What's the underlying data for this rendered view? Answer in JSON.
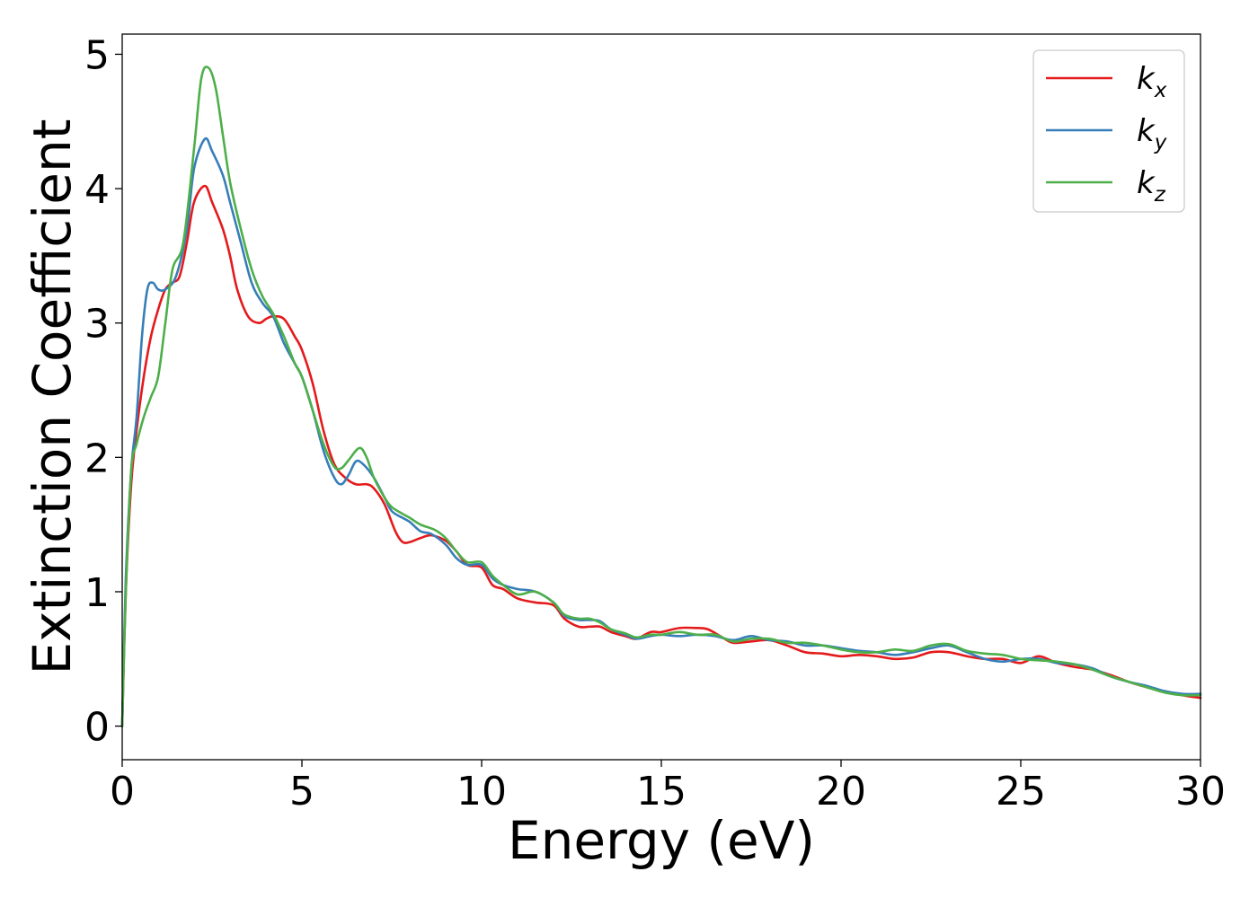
{
  "chart_data": {
    "type": "line",
    "xlabel": "Energy (eV)",
    "ylabel": "Extinction Coefficient",
    "xlim": [
      0,
      30
    ],
    "ylim": [
      -0.25,
      5.15
    ],
    "xticks": [
      0,
      5,
      10,
      15,
      20,
      25,
      30
    ],
    "xtick_labels": [
      "0",
      "5",
      "10",
      "15",
      "20",
      "25",
      "30"
    ],
    "yticks": [
      0,
      1,
      2,
      3,
      4,
      5
    ],
    "ytick_labels": [
      "0",
      "1",
      "2",
      "3",
      "4",
      "5"
    ],
    "grid": false,
    "legend_position": "top-right",
    "series": [
      {
        "name": "k",
        "subscript": "x",
        "color": "#e41a1c",
        "points": [
          [
            0,
            0
          ],
          [
            0.1,
            1.0
          ],
          [
            0.25,
            1.8
          ],
          [
            0.4,
            2.2
          ],
          [
            0.6,
            2.6
          ],
          [
            0.8,
            2.9
          ],
          [
            1.0,
            3.1
          ],
          [
            1.2,
            3.25
          ],
          [
            1.4,
            3.3
          ],
          [
            1.6,
            3.35
          ],
          [
            1.8,
            3.6
          ],
          [
            2.0,
            3.9
          ],
          [
            2.3,
            4.02
          ],
          [
            2.5,
            3.9
          ],
          [
            2.8,
            3.7
          ],
          [
            3.0,
            3.5
          ],
          [
            3.2,
            3.25
          ],
          [
            3.5,
            3.05
          ],
          [
            3.8,
            3.0
          ],
          [
            4.0,
            3.03
          ],
          [
            4.2,
            3.05
          ],
          [
            4.5,
            3.03
          ],
          [
            4.8,
            2.9
          ],
          [
            5.0,
            2.8
          ],
          [
            5.3,
            2.55
          ],
          [
            5.6,
            2.2
          ],
          [
            5.9,
            1.95
          ],
          [
            6.2,
            1.85
          ],
          [
            6.5,
            1.8
          ],
          [
            6.8,
            1.8
          ],
          [
            7.0,
            1.77
          ],
          [
            7.3,
            1.65
          ],
          [
            7.6,
            1.45
          ],
          [
            7.8,
            1.37
          ],
          [
            8.0,
            1.37
          ],
          [
            8.3,
            1.4
          ],
          [
            8.6,
            1.42
          ],
          [
            9.0,
            1.38
          ],
          [
            9.3,
            1.3
          ],
          [
            9.6,
            1.2
          ],
          [
            10.0,
            1.18
          ],
          [
            10.3,
            1.05
          ],
          [
            10.6,
            1.02
          ],
          [
            11.0,
            0.95
          ],
          [
            11.5,
            0.92
          ],
          [
            12.0,
            0.9
          ],
          [
            12.3,
            0.8
          ],
          [
            12.7,
            0.74
          ],
          [
            13.0,
            0.74
          ],
          [
            13.3,
            0.74
          ],
          [
            13.6,
            0.7
          ],
          [
            14.0,
            0.67
          ],
          [
            14.3,
            0.65
          ],
          [
            14.7,
            0.7
          ],
          [
            15.0,
            0.7
          ],
          [
            15.5,
            0.73
          ],
          [
            16.0,
            0.73
          ],
          [
            16.3,
            0.72
          ],
          [
            16.7,
            0.66
          ],
          [
            17.0,
            0.62
          ],
          [
            17.5,
            0.63
          ],
          [
            18.0,
            0.64
          ],
          [
            18.5,
            0.6
          ],
          [
            19.0,
            0.55
          ],
          [
            19.5,
            0.54
          ],
          [
            20.0,
            0.52
          ],
          [
            20.5,
            0.53
          ],
          [
            21.0,
            0.52
          ],
          [
            21.5,
            0.5
          ],
          [
            22.0,
            0.51
          ],
          [
            22.5,
            0.55
          ],
          [
            23.0,
            0.55
          ],
          [
            23.5,
            0.52
          ],
          [
            24.0,
            0.5
          ],
          [
            24.5,
            0.5
          ],
          [
            25.0,
            0.47
          ],
          [
            25.5,
            0.52
          ],
          [
            26.0,
            0.47
          ],
          [
            26.5,
            0.44
          ],
          [
            27.0,
            0.42
          ],
          [
            27.5,
            0.38
          ],
          [
            28.0,
            0.33
          ],
          [
            28.5,
            0.29
          ],
          [
            29.0,
            0.26
          ],
          [
            29.5,
            0.23
          ],
          [
            30.0,
            0.21
          ]
        ]
      },
      {
        "name": "k",
        "subscript": "y",
        "color": "#377eb8",
        "points": [
          [
            0,
            0
          ],
          [
            0.1,
            1.1
          ],
          [
            0.25,
            1.9
          ],
          [
            0.4,
            2.3
          ],
          [
            0.55,
            2.9
          ],
          [
            0.7,
            3.25
          ],
          [
            0.85,
            3.3
          ],
          [
            1.0,
            3.25
          ],
          [
            1.2,
            3.25
          ],
          [
            1.5,
            3.35
          ],
          [
            1.8,
            3.7
          ],
          [
            2.0,
            4.15
          ],
          [
            2.3,
            4.37
          ],
          [
            2.5,
            4.28
          ],
          [
            2.8,
            4.1
          ],
          [
            3.0,
            3.9
          ],
          [
            3.3,
            3.6
          ],
          [
            3.6,
            3.3
          ],
          [
            3.9,
            3.15
          ],
          [
            4.2,
            3.05
          ],
          [
            4.5,
            2.85
          ],
          [
            4.8,
            2.7
          ],
          [
            5.0,
            2.6
          ],
          [
            5.3,
            2.35
          ],
          [
            5.6,
            2.05
          ],
          [
            5.9,
            1.85
          ],
          [
            6.1,
            1.8
          ],
          [
            6.3,
            1.87
          ],
          [
            6.5,
            1.97
          ],
          [
            6.7,
            1.95
          ],
          [
            7.0,
            1.85
          ],
          [
            7.3,
            1.7
          ],
          [
            7.5,
            1.6
          ],
          [
            7.8,
            1.55
          ],
          [
            8.0,
            1.52
          ],
          [
            8.3,
            1.45
          ],
          [
            8.6,
            1.43
          ],
          [
            9.0,
            1.35
          ],
          [
            9.3,
            1.25
          ],
          [
            9.6,
            1.2
          ],
          [
            10.0,
            1.2
          ],
          [
            10.3,
            1.1
          ],
          [
            10.6,
            1.05
          ],
          [
            11.0,
            1.02
          ],
          [
            11.5,
            1.0
          ],
          [
            12.0,
            0.92
          ],
          [
            12.3,
            0.82
          ],
          [
            12.7,
            0.79
          ],
          [
            13.0,
            0.79
          ],
          [
            13.3,
            0.78
          ],
          [
            13.6,
            0.72
          ],
          [
            14.0,
            0.68
          ],
          [
            14.3,
            0.65
          ],
          [
            14.7,
            0.67
          ],
          [
            15.0,
            0.68
          ],
          [
            15.5,
            0.67
          ],
          [
            16.0,
            0.68
          ],
          [
            16.5,
            0.67
          ],
          [
            17.0,
            0.64
          ],
          [
            17.5,
            0.67
          ],
          [
            18.0,
            0.64
          ],
          [
            18.5,
            0.63
          ],
          [
            19.0,
            0.6
          ],
          [
            19.5,
            0.6
          ],
          [
            20.0,
            0.58
          ],
          [
            20.5,
            0.56
          ],
          [
            21.0,
            0.55
          ],
          [
            21.5,
            0.53
          ],
          [
            22.0,
            0.55
          ],
          [
            22.5,
            0.58
          ],
          [
            23.0,
            0.6
          ],
          [
            23.5,
            0.55
          ],
          [
            24.0,
            0.5
          ],
          [
            24.5,
            0.48
          ],
          [
            25.0,
            0.5
          ],
          [
            25.5,
            0.5
          ],
          [
            26.0,
            0.47
          ],
          [
            26.5,
            0.46
          ],
          [
            27.0,
            0.43
          ],
          [
            27.5,
            0.37
          ],
          [
            28.0,
            0.33
          ],
          [
            28.5,
            0.3
          ],
          [
            29.0,
            0.26
          ],
          [
            29.5,
            0.24
          ],
          [
            30.0,
            0.24
          ]
        ]
      },
      {
        "name": "k",
        "subscript": "z",
        "color": "#4daf4a",
        "points": [
          [
            0,
            0
          ],
          [
            0.1,
            1.0
          ],
          [
            0.25,
            1.9
          ],
          [
            0.4,
            2.1
          ],
          [
            0.6,
            2.3
          ],
          [
            0.8,
            2.45
          ],
          [
            1.0,
            2.6
          ],
          [
            1.2,
            3.0
          ],
          [
            1.4,
            3.4
          ],
          [
            1.7,
            3.6
          ],
          [
            2.0,
            4.3
          ],
          [
            2.2,
            4.82
          ],
          [
            2.4,
            4.9
          ],
          [
            2.6,
            4.75
          ],
          [
            2.8,
            4.4
          ],
          [
            3.0,
            4.05
          ],
          [
            3.3,
            3.7
          ],
          [
            3.6,
            3.4
          ],
          [
            3.9,
            3.2
          ],
          [
            4.2,
            3.07
          ],
          [
            4.5,
            2.9
          ],
          [
            4.8,
            2.7
          ],
          [
            5.0,
            2.6
          ],
          [
            5.3,
            2.35
          ],
          [
            5.6,
            2.1
          ],
          [
            5.9,
            1.93
          ],
          [
            6.1,
            1.92
          ],
          [
            6.3,
            1.98
          ],
          [
            6.6,
            2.07
          ],
          [
            6.8,
            2.0
          ],
          [
            7.0,
            1.85
          ],
          [
            7.3,
            1.7
          ],
          [
            7.5,
            1.63
          ],
          [
            7.8,
            1.58
          ],
          [
            8.0,
            1.55
          ],
          [
            8.3,
            1.5
          ],
          [
            8.7,
            1.46
          ],
          [
            9.0,
            1.4
          ],
          [
            9.3,
            1.3
          ],
          [
            9.6,
            1.22
          ],
          [
            10.0,
            1.22
          ],
          [
            10.3,
            1.12
          ],
          [
            10.6,
            1.05
          ],
          [
            11.0,
            0.98
          ],
          [
            11.5,
            1.0
          ],
          [
            12.0,
            0.92
          ],
          [
            12.3,
            0.83
          ],
          [
            12.7,
            0.8
          ],
          [
            13.0,
            0.8
          ],
          [
            13.3,
            0.77
          ],
          [
            13.6,
            0.72
          ],
          [
            14.0,
            0.69
          ],
          [
            14.3,
            0.66
          ],
          [
            14.7,
            0.68
          ],
          [
            15.0,
            0.68
          ],
          [
            15.5,
            0.7
          ],
          [
            16.0,
            0.68
          ],
          [
            16.5,
            0.68
          ],
          [
            17.0,
            0.63
          ],
          [
            17.5,
            0.65
          ],
          [
            18.0,
            0.65
          ],
          [
            18.5,
            0.62
          ],
          [
            19.0,
            0.62
          ],
          [
            19.5,
            0.6
          ],
          [
            20.0,
            0.57
          ],
          [
            20.5,
            0.55
          ],
          [
            21.0,
            0.55
          ],
          [
            21.5,
            0.57
          ],
          [
            22.0,
            0.56
          ],
          [
            22.5,
            0.6
          ],
          [
            23.0,
            0.61
          ],
          [
            23.5,
            0.56
          ],
          [
            24.0,
            0.54
          ],
          [
            24.5,
            0.53
          ],
          [
            25.0,
            0.5
          ],
          [
            25.5,
            0.49
          ],
          [
            26.0,
            0.48
          ],
          [
            26.5,
            0.46
          ],
          [
            27.0,
            0.42
          ],
          [
            27.5,
            0.37
          ],
          [
            28.0,
            0.33
          ],
          [
            28.5,
            0.29
          ],
          [
            29.0,
            0.25
          ],
          [
            29.5,
            0.23
          ],
          [
            30.0,
            0.23
          ]
        ]
      }
    ]
  }
}
